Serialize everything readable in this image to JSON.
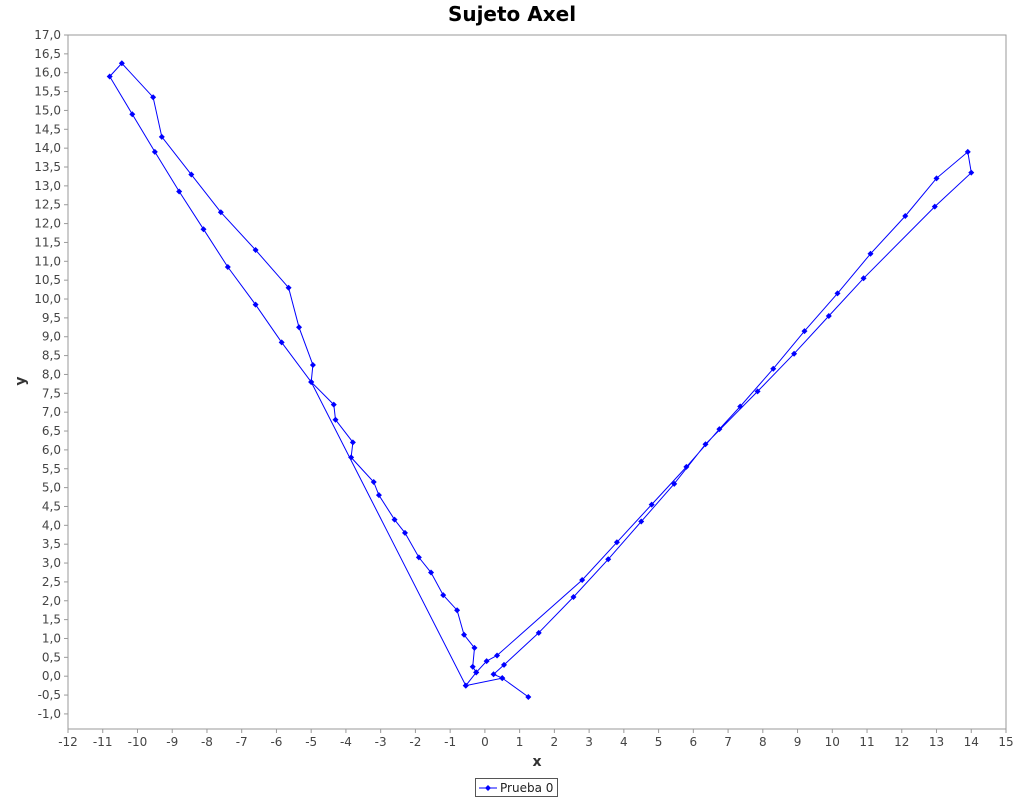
{
  "chart_data": {
    "type": "line",
    "title": "Sujeto Axel",
    "xlabel": "x",
    "ylabel": "y",
    "xlim": [
      -12,
      15
    ],
    "ylim": [
      -1.4,
      17.0
    ],
    "xticks": [
      -12,
      -11,
      -10,
      -9,
      -8,
      -7,
      -6,
      -5,
      -4,
      -3,
      -2,
      -1,
      0,
      1,
      2,
      3,
      4,
      5,
      6,
      7,
      8,
      9,
      10,
      11,
      12,
      13,
      14,
      15
    ],
    "yticks": [
      "-1,0",
      "-0,5",
      "0,0",
      "0,5",
      "1,0",
      "1,5",
      "2,0",
      "2,5",
      "3,0",
      "3,5",
      "4,0",
      "4,5",
      "5,0",
      "5,5",
      "6,0",
      "6,5",
      "7,0",
      "7,5",
      "8,0",
      "8,5",
      "9,0",
      "9,5",
      "10,0",
      "10,5",
      "11,0",
      "11,5",
      "12,0",
      "12,5",
      "13,0",
      "13,5",
      "14,0",
      "14,5",
      "15,0",
      "15,5",
      "16,0",
      "16,5",
      "17,0"
    ],
    "grid": false,
    "legend_position": "bottom-center",
    "color": "#0000ff",
    "series": [
      {
        "name": "Prueba 0",
        "points": [
          [
            1.25,
            -0.55
          ],
          [
            0.5,
            -0.05
          ],
          [
            -0.55,
            -0.25
          ],
          [
            -0.25,
            0.1
          ],
          [
            -0.35,
            0.25
          ],
          [
            -0.3,
            0.75
          ],
          [
            -0.6,
            1.1
          ],
          [
            -0.8,
            1.75
          ],
          [
            -1.2,
            2.15
          ],
          [
            -1.55,
            2.75
          ],
          [
            -1.9,
            3.15
          ],
          [
            -2.3,
            3.8
          ],
          [
            -2.6,
            4.15
          ],
          [
            -3.05,
            4.8
          ],
          [
            -3.2,
            5.15
          ],
          [
            -3.85,
            5.8
          ],
          [
            -3.8,
            6.2
          ],
          [
            -4.3,
            6.8
          ],
          [
            -4.35,
            7.2
          ],
          [
            -5.0,
            7.8
          ],
          [
            -4.95,
            8.25
          ],
          [
            -5.35,
            9.25
          ],
          [
            -5.65,
            10.3
          ],
          [
            -6.6,
            11.3
          ],
          [
            -7.6,
            12.3
          ],
          [
            -8.45,
            13.3
          ],
          [
            -9.3,
            14.3
          ],
          [
            -9.55,
            15.35
          ],
          [
            -10.45,
            16.25
          ],
          [
            -10.8,
            15.9
          ],
          [
            -10.15,
            14.9
          ],
          [
            -9.5,
            13.9
          ],
          [
            -8.8,
            12.85
          ],
          [
            -8.1,
            11.85
          ],
          [
            -7.4,
            10.85
          ],
          [
            -6.6,
            9.85
          ],
          [
            -5.85,
            8.85
          ],
          [
            -5.0,
            7.8
          ],
          [
            -0.55,
            -0.25
          ],
          [
            -0.25,
            0.1
          ],
          [
            0.05,
            0.4
          ],
          [
            0.35,
            0.55
          ],
          [
            2.8,
            2.55
          ],
          [
            3.8,
            3.55
          ],
          [
            4.8,
            4.55
          ],
          [
            5.8,
            5.55
          ],
          [
            6.75,
            6.55
          ],
          [
            7.35,
            7.15
          ],
          [
            8.3,
            8.15
          ],
          [
            9.2,
            9.15
          ],
          [
            10.15,
            10.15
          ],
          [
            11.1,
            11.2
          ],
          [
            12.1,
            12.2
          ],
          [
            13.0,
            13.2
          ],
          [
            13.9,
            13.9
          ],
          [
            14.0,
            13.35
          ],
          [
            12.95,
            12.45
          ],
          [
            10.9,
            10.55
          ],
          [
            9.9,
            9.55
          ],
          [
            8.9,
            8.55
          ],
          [
            7.85,
            7.55
          ],
          [
            6.35,
            6.15
          ],
          [
            5.45,
            5.1
          ],
          [
            4.5,
            4.1
          ],
          [
            3.55,
            3.1
          ],
          [
            2.55,
            2.1
          ],
          [
            1.55,
            1.15
          ],
          [
            0.55,
            0.3
          ],
          [
            0.25,
            0.05
          ],
          [
            0.5,
            -0.05
          ]
        ]
      }
    ]
  }
}
